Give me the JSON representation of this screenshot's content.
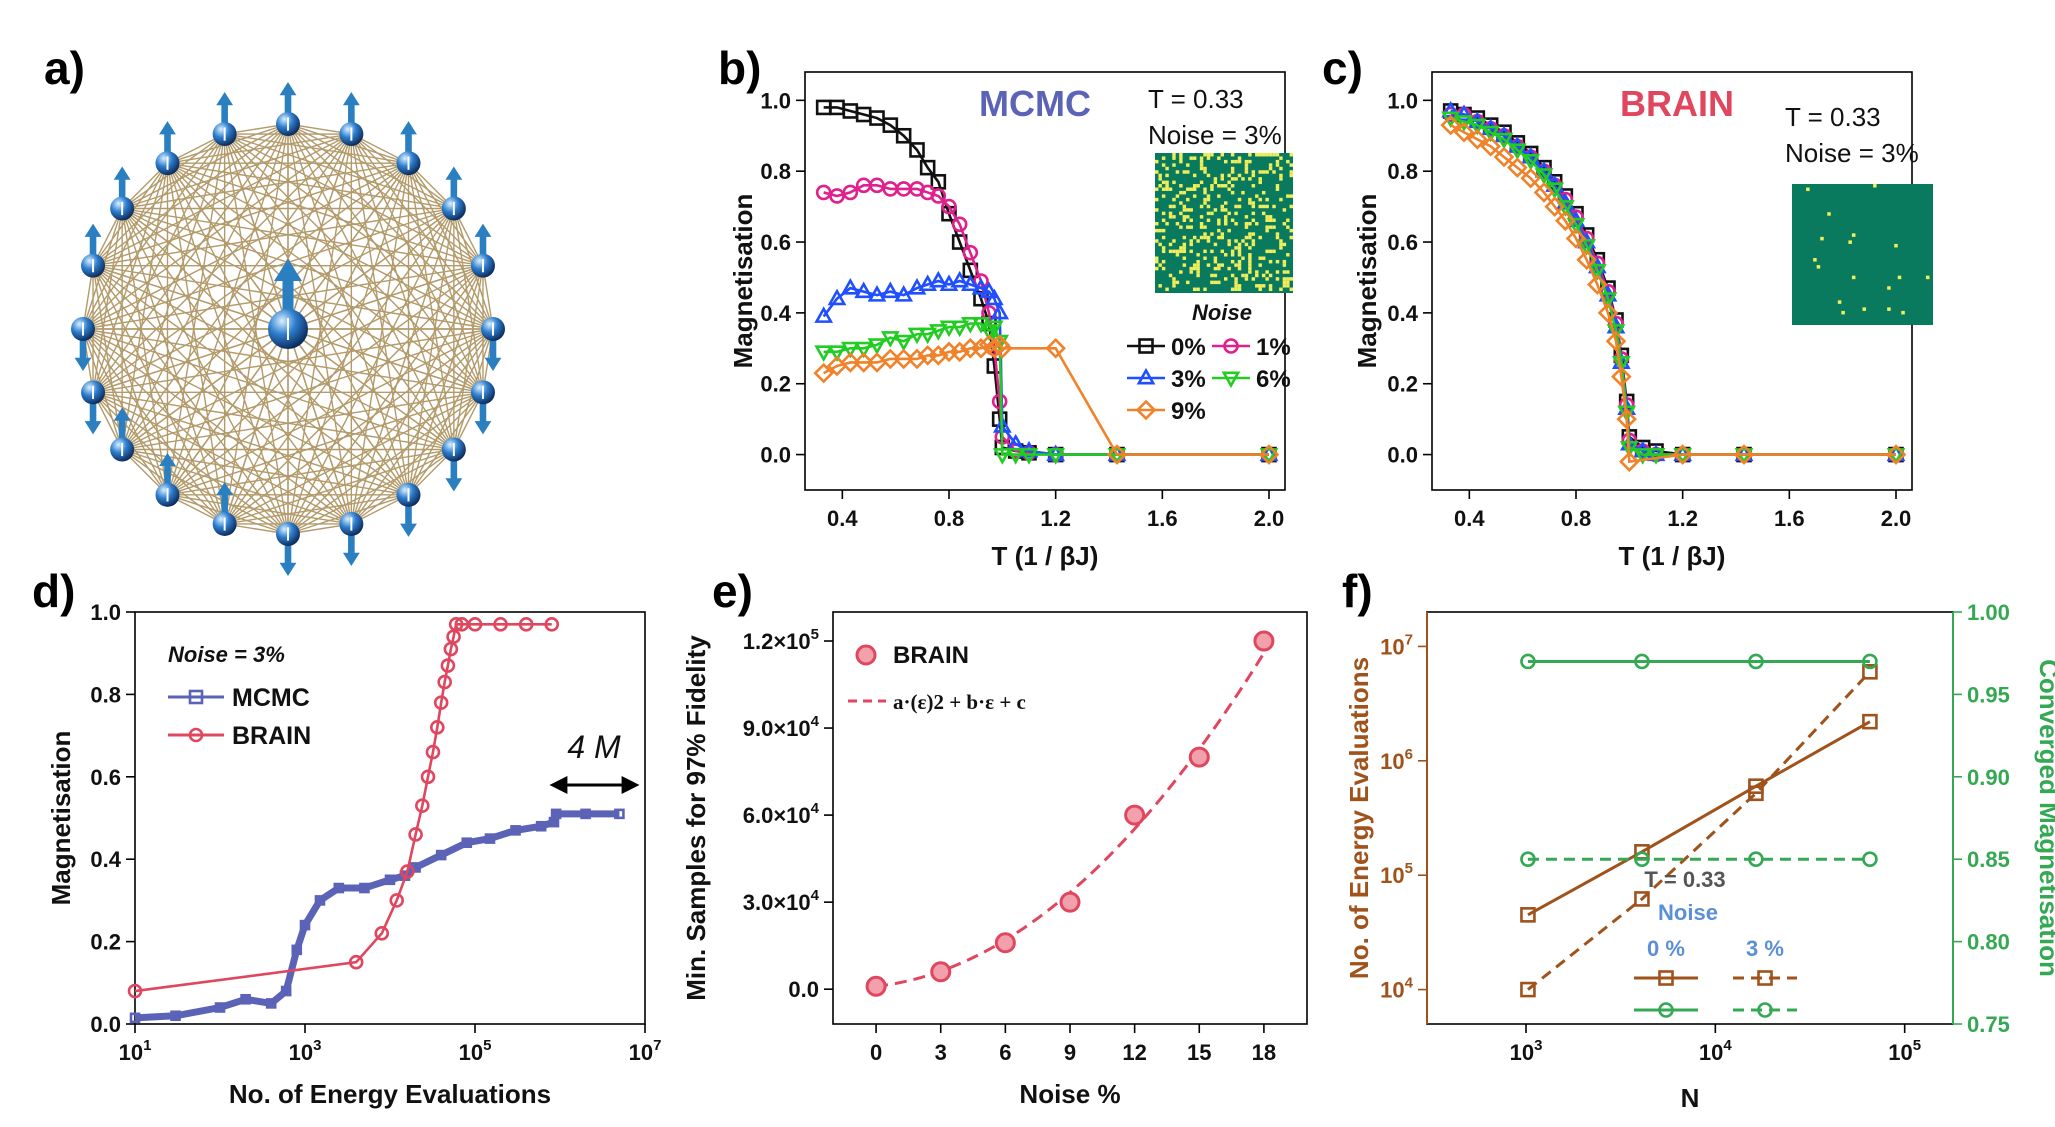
{
  "colors": {
    "mcmc": "#5b63b7",
    "brain": "#e0475e",
    "ising_bg": "#0a7a5f",
    "ising_flip": "#f0ee5a",
    "s0": "#111111",
    "s1": "#e0208c",
    "s3": "#1f4fff",
    "s6": "#22cc22",
    "s9": "#f0822a",
    "energy": "#a0521b",
    "conv": "#34a853",
    "noise_lab": "#5b8fd6",
    "lattice": "#b39a6a",
    "spin": "#2a7fc1"
  },
  "panels": {
    "a": {
      "label": "a)",
      "spins_center": [
        "up"
      ],
      "spins_ring": [
        "up",
        "up",
        "up",
        "up",
        "up",
        "down",
        "down",
        "down",
        "down",
        "down",
        "down",
        "up",
        "up",
        "up",
        "down",
        "down",
        "up",
        "up",
        "up",
        "up"
      ]
    },
    "b": {
      "label": "b)"
    },
    "c": {
      "label": "c)"
    },
    "d": {
      "label": "d)"
    },
    "e": {
      "label": "e)"
    },
    "f": {
      "label": "f)"
    }
  },
  "chart_data": [
    {
      "id": "b",
      "type": "line",
      "title": "MCMC",
      "annotation": [
        "T = 0.33",
        "Noise = 3%"
      ],
      "inset_label": "Noise",
      "xlabel": "T (1 / βJ)",
      "ylabel": "Magnetisation",
      "xlim": [
        0.26,
        2.06
      ],
      "ylim": [
        -0.1,
        1.08
      ],
      "xticks": [
        0.4,
        0.8,
        1.2,
        1.6,
        2.0
      ],
      "xticklabels": [
        "0.4",
        "0.8",
        "1.2",
        "1.6",
        "2.0"
      ],
      "yticks": [
        0,
        0.2,
        0.4,
        0.6,
        0.8,
        1.0
      ],
      "yticklabels": [
        "0.0",
        "0.2",
        "0.4",
        "0.6",
        "0.8",
        "1.0"
      ],
      "legend": [
        "0%",
        "1%",
        "3%",
        "6%",
        "9%"
      ],
      "series": [
        {
          "name": "0%",
          "marker": "square",
          "color_key": "s0",
          "x": [
            0.33,
            0.38,
            0.43,
            0.48,
            0.53,
            0.58,
            0.63,
            0.68,
            0.72,
            0.76,
            0.8,
            0.84,
            0.88,
            0.92,
            0.95,
            0.97,
            0.99,
            1.0,
            1.05,
            1.1,
            1.2,
            1.43,
            2.0
          ],
          "y": [
            0.98,
            0.98,
            0.97,
            0.96,
            0.95,
            0.93,
            0.9,
            0.86,
            0.81,
            0.77,
            0.68,
            0.6,
            0.52,
            0.44,
            0.37,
            0.25,
            0.1,
            0.02,
            0.01,
            0.005,
            0.0,
            0.0,
            0.0
          ]
        },
        {
          "name": "1%",
          "marker": "circle",
          "color_key": "s1",
          "x": [
            0.33,
            0.38,
            0.43,
            0.48,
            0.53,
            0.58,
            0.63,
            0.68,
            0.72,
            0.76,
            0.8,
            0.84,
            0.88,
            0.92,
            0.95,
            0.97,
            0.99,
            1.0,
            1.05,
            1.1,
            1.2,
            1.43,
            2.0
          ],
          "y": [
            0.74,
            0.73,
            0.74,
            0.76,
            0.76,
            0.75,
            0.75,
            0.75,
            0.74,
            0.73,
            0.7,
            0.65,
            0.57,
            0.49,
            0.4,
            0.3,
            0.15,
            0.05,
            0.01,
            0.005,
            0.0,
            0.0,
            0.0
          ]
        },
        {
          "name": "3%",
          "marker": "triangle-up",
          "color_key": "s3",
          "x": [
            0.33,
            0.38,
            0.43,
            0.48,
            0.53,
            0.58,
            0.63,
            0.68,
            0.72,
            0.76,
            0.8,
            0.84,
            0.88,
            0.92,
            0.95,
            0.97,
            0.99,
            1.0,
            1.05,
            1.1,
            1.2,
            1.43,
            2.0
          ],
          "y": [
            0.39,
            0.44,
            0.47,
            0.46,
            0.45,
            0.46,
            0.45,
            0.47,
            0.48,
            0.49,
            0.48,
            0.49,
            0.48,
            0.47,
            0.46,
            0.44,
            0.4,
            0.08,
            0.03,
            0.01,
            0.0,
            0.0,
            0.0
          ]
        },
        {
          "name": "6%",
          "marker": "triangle-down",
          "color_key": "s6",
          "x": [
            0.33,
            0.38,
            0.43,
            0.48,
            0.53,
            0.58,
            0.63,
            0.68,
            0.72,
            0.76,
            0.8,
            0.84,
            0.88,
            0.92,
            0.95,
            0.97,
            0.99,
            1.0,
            1.05,
            1.1,
            1.2,
            1.43,
            2.0
          ],
          "y": [
            0.29,
            0.29,
            0.3,
            0.3,
            0.31,
            0.33,
            0.32,
            0.34,
            0.34,
            0.35,
            0.36,
            0.36,
            0.37,
            0.37,
            0.35,
            0.36,
            0.32,
            0.0,
            0.0,
            0.0,
            0.0,
            0.0,
            0.0
          ]
        },
        {
          "name": "9%",
          "marker": "diamond",
          "color_key": "s9",
          "x": [
            0.33,
            0.38,
            0.43,
            0.48,
            0.53,
            0.58,
            0.63,
            0.68,
            0.72,
            0.76,
            0.8,
            0.84,
            0.88,
            0.92,
            0.95,
            0.97,
            0.99,
            1.0,
            1.2,
            1.43,
            2.0
          ],
          "y": [
            0.23,
            0.25,
            0.26,
            0.26,
            0.26,
            0.27,
            0.27,
            0.27,
            0.28,
            0.28,
            0.29,
            0.29,
            0.3,
            0.3,
            0.31,
            0.3,
            0.31,
            0.3,
            0.3,
            0.0,
            0.0
          ]
        }
      ]
    },
    {
      "id": "c",
      "type": "line",
      "title": "BRAIN",
      "annotation": [
        "T = 0.33",
        "Noise = 3%"
      ],
      "xlabel": "T (1 / βJ)",
      "ylabel": "Magnetisation",
      "xlim": [
        0.26,
        2.06
      ],
      "ylim": [
        -0.1,
        1.08
      ],
      "xticks": [
        0.4,
        0.8,
        1.2,
        1.6,
        2.0
      ],
      "xticklabels": [
        "0.4",
        "0.8",
        "1.2",
        "1.6",
        "2.0"
      ],
      "yticks": [
        0,
        0.2,
        0.4,
        0.6,
        0.8,
        1.0
      ],
      "yticklabels": [
        "0.0",
        "0.2",
        "0.4",
        "0.6",
        "0.8",
        "1.0"
      ],
      "series": [
        {
          "name": "0%",
          "marker": "square",
          "color_key": "s0",
          "x": [
            0.33,
            0.38,
            0.43,
            0.48,
            0.53,
            0.58,
            0.63,
            0.68,
            0.72,
            0.76,
            0.8,
            0.84,
            0.88,
            0.92,
            0.95,
            0.97,
            0.99,
            1.0,
            1.05,
            1.1,
            1.2,
            1.43,
            2.0
          ],
          "y": [
            0.97,
            0.96,
            0.95,
            0.93,
            0.91,
            0.88,
            0.85,
            0.81,
            0.77,
            0.73,
            0.68,
            0.62,
            0.55,
            0.47,
            0.38,
            0.28,
            0.15,
            0.05,
            0.02,
            0.01,
            0.0,
            0.0,
            0.0
          ]
        },
        {
          "name": "1%",
          "marker": "circle",
          "color_key": "s1",
          "x": [
            0.33,
            0.38,
            0.43,
            0.48,
            0.53,
            0.58,
            0.63,
            0.68,
            0.72,
            0.76,
            0.8,
            0.84,
            0.88,
            0.92,
            0.95,
            0.97,
            0.99,
            1.0,
            1.05,
            1.1,
            1.2,
            1.43,
            2.0
          ],
          "y": [
            0.96,
            0.96,
            0.94,
            0.92,
            0.9,
            0.87,
            0.84,
            0.8,
            0.76,
            0.72,
            0.67,
            0.61,
            0.54,
            0.46,
            0.37,
            0.27,
            0.14,
            0.04,
            0.01,
            0.0,
            0.0,
            0.0,
            0.0
          ]
        },
        {
          "name": "3%",
          "marker": "triangle-up",
          "color_key": "s3",
          "x": [
            0.33,
            0.38,
            0.43,
            0.48,
            0.53,
            0.58,
            0.63,
            0.68,
            0.72,
            0.76,
            0.8,
            0.84,
            0.88,
            0.92,
            0.95,
            0.97,
            0.99,
            1.0,
            1.05,
            1.1,
            1.2,
            1.43,
            2.0
          ],
          "y": [
            0.97,
            0.96,
            0.94,
            0.92,
            0.9,
            0.87,
            0.84,
            0.8,
            0.76,
            0.71,
            0.66,
            0.6,
            0.53,
            0.45,
            0.36,
            0.26,
            0.13,
            0.03,
            0.01,
            0.0,
            0.0,
            0.0,
            0.0
          ]
        },
        {
          "name": "6%",
          "marker": "triangle-down",
          "color_key": "s6",
          "x": [
            0.33,
            0.38,
            0.43,
            0.48,
            0.53,
            0.58,
            0.63,
            0.68,
            0.72,
            0.76,
            0.8,
            0.84,
            0.88,
            0.92,
            0.95,
            0.97,
            0.99,
            1.0,
            1.05,
            1.1,
            1.2,
            1.43,
            2.0
          ],
          "y": [
            0.95,
            0.94,
            0.93,
            0.91,
            0.89,
            0.86,
            0.83,
            0.79,
            0.75,
            0.7,
            0.65,
            0.59,
            0.52,
            0.44,
            0.35,
            0.26,
            0.12,
            0.02,
            0.0,
            0.0,
            0.0,
            0.0,
            0.0
          ]
        },
        {
          "name": "9%",
          "marker": "diamond",
          "color_key": "s9",
          "x": [
            0.33,
            0.38,
            0.43,
            0.48,
            0.53,
            0.58,
            0.63,
            0.68,
            0.72,
            0.76,
            0.8,
            0.84,
            0.88,
            0.92,
            0.95,
            0.97,
            0.99,
            1.0,
            1.2,
            1.43,
            2.0
          ],
          "y": [
            0.93,
            0.91,
            0.89,
            0.87,
            0.84,
            0.81,
            0.78,
            0.74,
            0.7,
            0.66,
            0.61,
            0.55,
            0.48,
            0.4,
            0.32,
            0.22,
            0.1,
            -0.02,
            0.0,
            0.0,
            0.0
          ]
        }
      ]
    },
    {
      "id": "d",
      "type": "line",
      "annotation": "Noise = 3%",
      "range_label": "4 M",
      "xlabel": "No. of Energy Evaluations",
      "ylabel": "Magnetisation",
      "xscale": "log",
      "xlim": [
        10,
        10000000
      ],
      "ylim": [
        0,
        1.0
      ],
      "xticks": [
        10,
        1000,
        100000,
        10000000
      ],
      "xtick_base": [
        "10",
        "10",
        "10",
        "10"
      ],
      "xtick_exp": [
        "1",
        "3",
        "5",
        "7"
      ],
      "yticks": [
        0,
        0.2,
        0.4,
        0.6,
        0.8,
        1.0
      ],
      "yticklabels": [
        "0.0",
        "0.2",
        "0.4",
        "0.6",
        "0.8",
        "1.0"
      ],
      "legend": [
        "MCMC",
        "BRAIN"
      ],
      "series": [
        {
          "name": "MCMC",
          "marker": "square",
          "color_key": "mcmc",
          "x": [
            10,
            30,
            100,
            200,
            400,
            600,
            800,
            1000,
            1500,
            2500,
            5000,
            10000,
            15000,
            20000,
            40000,
            80000,
            150000,
            300000,
            600000,
            850000,
            900000,
            2000000,
            5000000
          ],
          "y": [
            0.015,
            0.02,
            0.04,
            0.06,
            0.05,
            0.08,
            0.18,
            0.24,
            0.3,
            0.33,
            0.33,
            0.35,
            0.36,
            0.38,
            0.41,
            0.44,
            0.45,
            0.47,
            0.48,
            0.49,
            0.51,
            0.51,
            0.51
          ]
        },
        {
          "name": "BRAIN",
          "marker": "circle",
          "color_key": "brain",
          "x": [
            10,
            4000,
            8000,
            12000,
            16000,
            20000,
            24000,
            28000,
            32000,
            36000,
            40000,
            44000,
            48000,
            52000,
            56000,
            60000,
            70000,
            100000,
            200000,
            400000,
            800000
          ],
          "y": [
            0.08,
            0.15,
            0.22,
            0.3,
            0.37,
            0.46,
            0.53,
            0.6,
            0.66,
            0.72,
            0.78,
            0.83,
            0.87,
            0.91,
            0.94,
            0.97,
            0.97,
            0.97,
            0.97,
            0.97,
            0.97
          ]
        }
      ]
    },
    {
      "id": "e",
      "type": "scatter",
      "xlabel": "Noise %",
      "ylabel": "Min. Samples for 97% Fidelity",
      "xlim": [
        -2,
        20
      ],
      "ylim": [
        -12000,
        130000
      ],
      "xticks": [
        0,
        3,
        6,
        9,
        12,
        15,
        18
      ],
      "xticklabels": [
        "0",
        "3",
        "6",
        "9",
        "12",
        "15",
        "18"
      ],
      "yticks": [
        0,
        30000,
        60000,
        90000,
        120000
      ],
      "ytick_mant": [
        "0.0",
        "3.0×10",
        "6.0×10",
        "9.0×10",
        "1.2×10"
      ],
      "ytick_exp": [
        "",
        "4",
        "4",
        "4",
        "5"
      ],
      "legend": [
        "BRAIN",
        "a·(ε)2 + b·ε + c"
      ],
      "series": [
        {
          "name": "BRAIN",
          "marker": "circle",
          "color_key": "brain",
          "x": [
            0,
            3,
            6,
            9,
            12,
            15,
            18
          ],
          "y": [
            1000,
            6000,
            16000,
            30000,
            60000,
            80000,
            120000
          ]
        },
        {
          "name": "fit",
          "style": "dashed",
          "color_key": "brain",
          "fit_coeffs": [
            310,
            800,
            1000
          ]
        }
      ]
    },
    {
      "id": "f",
      "type": "line",
      "annotation": [
        "T = 0.33",
        "Noise"
      ],
      "legend_cols": [
        "0 %",
        "3 %"
      ],
      "xlabel": "N",
      "ylabel_left": "No. of Energy Evaluations",
      "ylabel_right": "Converged Magnetisation",
      "xscale": "log",
      "xlim": [
        300,
        180000
      ],
      "y1scale": "log",
      "y1lim": [
        5000,
        20000000
      ],
      "y2lim": [
        0.75,
        1.0
      ],
      "xticks": [
        1000,
        10000,
        100000
      ],
      "xtick_exp": [
        "3",
        "4",
        "5"
      ],
      "y1ticks": [
        10000,
        100000,
        1000000,
        10000000
      ],
      "y1tick_exp": [
        "4",
        "5",
        "6",
        "7"
      ],
      "y2ticks": [
        0.75,
        0.8,
        0.85,
        0.9,
        0.95,
        1.0
      ],
      "y2ticklabels": [
        "0.75",
        "0.80",
        "0.85",
        "0.90",
        "0.95",
        "1.00"
      ],
      "series": [
        {
          "name": "Energy 0%",
          "axis": "left",
          "style": "solid",
          "marker": "square",
          "color_key": "energy",
          "x": [
            1024,
            4096,
            16384,
            65536
          ],
          "y": [
            45000,
            160000,
            600000,
            2200000
          ]
        },
        {
          "name": "Energy 3%",
          "axis": "left",
          "style": "dashed",
          "marker": "square",
          "color_key": "energy",
          "x": [
            1024,
            4096,
            16384,
            65536
          ],
          "y": [
            10000,
            62000,
            520000,
            6000000
          ]
        },
        {
          "name": "Mag 0%",
          "axis": "right",
          "style": "solid",
          "marker": "circle",
          "color_key": "conv",
          "x": [
            1024,
            4096,
            16384,
            65536
          ],
          "y": [
            0.97,
            0.97,
            0.97,
            0.97
          ]
        },
        {
          "name": "Mag 3%",
          "axis": "right",
          "style": "dashed",
          "marker": "circle",
          "color_key": "conv",
          "x": [
            1024,
            4096,
            16384,
            65536
          ],
          "y": [
            0.85,
            0.85,
            0.85,
            0.85
          ]
        }
      ]
    }
  ]
}
